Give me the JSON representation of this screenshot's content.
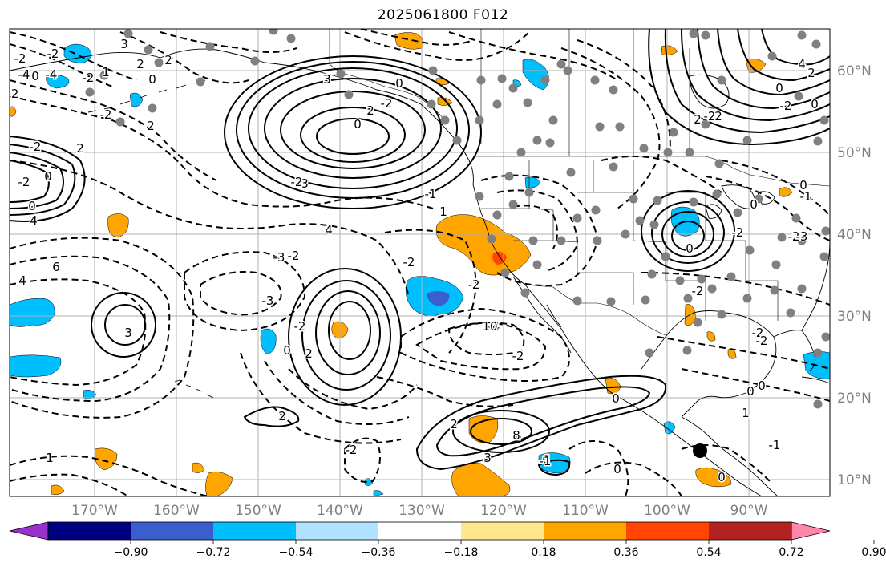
{
  "title": "2025061800 F012",
  "lon_labels": [
    "170°W",
    "160°W",
    "150°W",
    "140°W",
    "130°W",
    "120°W",
    "110°W",
    "100°W",
    "90°W"
  ],
  "lat_labels": [
    "60°N",
    "50°N",
    "40°N",
    "30°N",
    "20°N",
    "10°N"
  ],
  "colorbar": {
    "colors": [
      "#9932cc",
      "#000080",
      "#3a5fcd",
      "#00bfff",
      "#b0e2ff",
      "#ffffff",
      "#ffe68c",
      "#ffa500",
      "#ff4500",
      "#b22222",
      "#ff88aa"
    ],
    "tick_labels": [
      "−0.90",
      "−0.72",
      "−0.54",
      "−0.36",
      "−0.18",
      "0.18",
      "0.36",
      "0.54",
      "0.72",
      "0.90"
    ]
  },
  "contour_labels": [
    "-2",
    "-4",
    "-2",
    "0",
    "-2",
    "-4",
    "-2",
    "0",
    "-2",
    "0",
    "2",
    "4",
    "6",
    "4",
    "3",
    "2",
    "1",
    "0",
    "-2",
    "2",
    "-2",
    "2",
    "3",
    "4",
    "-3",
    "0",
    "-2",
    "2",
    "-2",
    "-3",
    "3",
    "-2",
    "2",
    "0",
    "-2",
    "3",
    "0",
    "-1",
    "1",
    "-2",
    "-2",
    "-4",
    "-2",
    "2",
    "4",
    "6",
    "3",
    "10",
    "8",
    "4",
    "2",
    "0",
    "-2",
    "0",
    "2",
    "-2",
    "2",
    "0",
    "0",
    "-2",
    "0",
    "-1",
    "-2",
    "-2",
    "-2",
    "0",
    "-2",
    "-3",
    "0",
    "1",
    "-1",
    "0",
    "0",
    "1",
    "2",
    "-2",
    "0",
    "-1",
    "1"
  ],
  "marker_colors": {
    "gray_dot": "#808080",
    "black_dot": "#000000"
  }
}
